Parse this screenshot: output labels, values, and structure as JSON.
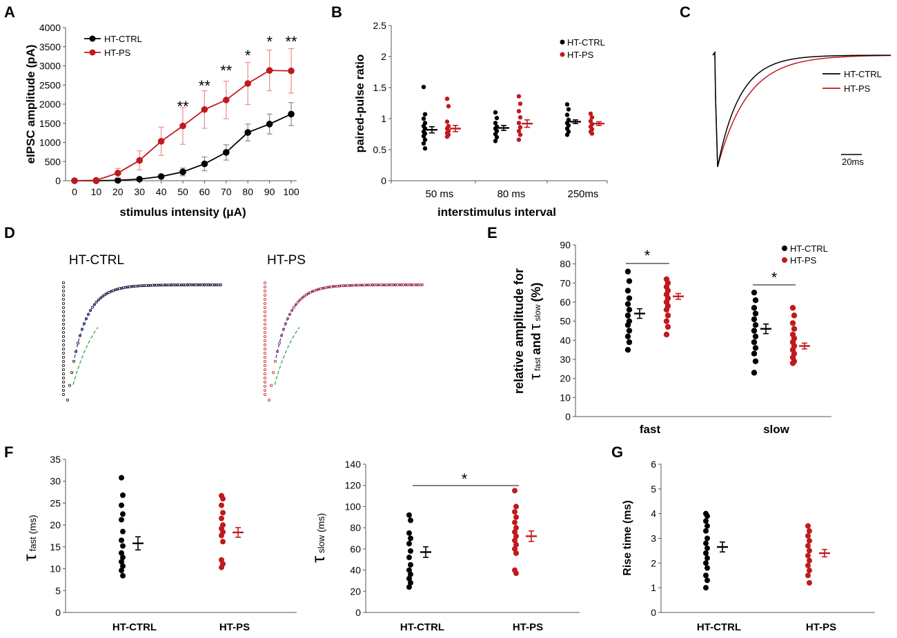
{
  "colors": {
    "ctrl": "#000000",
    "ps": "#c0191e",
    "ps_error": "#f08a8a",
    "axis": "#555555",
    "fit_blue": "#2b3cc4",
    "fit_green": "#2aa84a"
  },
  "chart_data": [
    {
      "panel": "A",
      "type": "line",
      "xlabel": "stimulus intensity (μA)",
      "ylabel": "eIPSC amplitude (pA)",
      "x": [
        0,
        10,
        20,
        30,
        40,
        50,
        60,
        70,
        80,
        90,
        100
      ],
      "ylim": [
        0,
        4000
      ],
      "yticks": [
        "0",
        "500",
        "1000",
        "1500",
        "2000",
        "2500",
        "3000",
        "3500",
        "4000"
      ],
      "xticks": [
        "0",
        "10",
        "20",
        "30",
        "40",
        "50",
        "60",
        "70",
        "80",
        "90",
        "100"
      ],
      "series": [
        {
          "name": "HT-CTRL",
          "values": [
            0,
            0,
            10,
            40,
            110,
            230,
            440,
            740,
            1260,
            1480,
            1740
          ],
          "errors": [
            0,
            0,
            20,
            30,
            40,
            100,
            180,
            200,
            220,
            260,
            300
          ]
        },
        {
          "name": "HT-PS",
          "values": [
            0,
            10,
            200,
            530,
            1030,
            1430,
            1860,
            2110,
            2540,
            2880,
            2870
          ],
          "errors": [
            0,
            20,
            120,
            250,
            370,
            480,
            490,
            490,
            550,
            530,
            580
          ]
        }
      ],
      "significance": [
        {
          "x": 50,
          "label": "**"
        },
        {
          "x": 60,
          "label": "**"
        },
        {
          "x": 70,
          "label": "**"
        },
        {
          "x": 80,
          "label": "*"
        },
        {
          "x": 90,
          "label": "*"
        },
        {
          "x": 100,
          "label": "**"
        }
      ]
    },
    {
      "panel": "B",
      "type": "scatter",
      "xlabel": "interstimulus interval",
      "ylabel": "paired-pulse ratio",
      "categories": [
        "50 ms",
        "80 ms",
        "250ms"
      ],
      "ylim": [
        0,
        2.5
      ],
      "yticks": [
        "0",
        "0.5",
        "1",
        "1.5",
        "2",
        "2.5"
      ],
      "series": [
        {
          "name": "HT-CTRL",
          "points": [
            [
              1.51,
              1.07,
              1.0,
              0.93,
              0.88,
              0.84,
              0.79,
              0.76,
              0.72,
              0.66,
              0.6,
              0.52
            ],
            [
              1.1,
              1.01,
              0.93,
              0.87,
              0.84,
              0.8,
              0.75,
              0.7,
              0.64
            ],
            [
              1.23,
              1.15,
              1.06,
              0.98,
              0.93,
              0.89,
              0.84,
              0.79,
              0.74
            ]
          ],
          "mean": [
            0.82,
            0.85,
            0.95
          ],
          "sem": [
            0.05,
            0.04,
            0.03
          ]
        },
        {
          "name": "HT-PS",
          "points": [
            [
              1.32,
              1.2,
              0.95,
              0.88,
              0.84,
              0.8,
              0.77,
              0.74,
              0.71
            ],
            [
              1.36,
              1.24,
              1.12,
              1.02,
              0.93,
              0.86,
              0.8,
              0.74,
              0.66
            ],
            [
              1.08,
              1.02,
              0.96,
              0.91,
              0.87,
              0.83,
              0.79,
              0.76
            ]
          ],
          "mean": [
            0.84,
            0.92,
            0.92
          ],
          "sem": [
            0.05,
            0.06,
            0.03
          ]
        }
      ]
    },
    {
      "panel": "C",
      "type": "line",
      "series_names": [
        "HT-CTRL",
        "HT-PS"
      ],
      "tau_ctrl_ms": 18,
      "tau_ps_ms": 24,
      "scale_label": "20ms"
    },
    {
      "panel": "D",
      "type": "line",
      "titles": [
        "HT-CTRL",
        "HT-PS"
      ]
    },
    {
      "panel": "E",
      "type": "scatter",
      "ylabel_line1": "relative amplitude for",
      "ylabel_tau": "τ",
      "ylabel_fast": "fast",
      "ylabel_and": "and",
      "ylabel_slow": "slow",
      "ylabel_pct": "(%)",
      "categories": [
        "fast",
        "slow"
      ],
      "ylim": [
        0,
        90
      ],
      "yticks": [
        "0",
        "10",
        "20",
        "30",
        "40",
        "50",
        "60",
        "70",
        "80",
        "90"
      ],
      "series": [
        {
          "name": "HT-CTRL",
          "points": [
            [
              76,
              71,
              66,
              62,
              59,
              56,
              53,
              50,
              48,
              45,
              42,
              39,
              35
            ],
            [
              65,
              61,
              57,
              54,
              51,
              48,
              45,
              42,
              39,
              36,
              33,
              29,
              23
            ]
          ],
          "mean": [
            54,
            46
          ],
          "sem": [
            2.5,
            2.5
          ]
        },
        {
          "name": "HT-PS",
          "points": [
            [
              72,
              70,
              68,
              66,
              64,
              62,
              60,
              58,
              56,
              53,
              50,
              47,
              43
            ],
            [
              57,
              53,
              49,
              46,
              43,
              41,
              39,
              37,
              35,
              33,
              31,
              29,
              28
            ]
          ],
          "mean": [
            63,
            37
          ],
          "sem": [
            1.5,
            1.5
          ]
        }
      ],
      "significance": [
        {
          "label": "*",
          "from": 0,
          "to": 0,
          "y": 78
        },
        {
          "label": "*",
          "from": 1,
          "to": 1,
          "y": 68
        }
      ]
    },
    {
      "panel": "F1",
      "type": "scatter",
      "ylabel_tau": "τ",
      "ylabel_sub": "fast",
      "ylabel_unit": "(ms)",
      "categories": [
        "HT-CTRL",
        "HT-PS"
      ],
      "ylim": [
        0,
        35
      ],
      "yticks": [
        "0",
        "5",
        "10",
        "15",
        "20",
        "25",
        "30",
        "35"
      ],
      "series": [
        {
          "name": "HT-CTRL",
          "points": [
            30.8,
            26.8,
            24.5,
            22.5,
            21.2,
            18.5,
            16.5,
            15.2,
            13.6,
            12.6,
            11.6,
            10.6,
            9.6,
            8.4
          ],
          "mean": 15.8,
          "sem": 1.5
        },
        {
          "name": "HT-PS",
          "points": [
            26.7,
            26.0,
            24.5,
            22.8,
            21.5,
            20.0,
            19.2,
            18.4,
            17.6,
            16.2,
            12.0,
            11.1,
            10.3
          ],
          "mean": 18.3,
          "sem": 1.1
        }
      ]
    },
    {
      "panel": "F2",
      "type": "scatter",
      "ylabel_tau": "τ",
      "ylabel_sub": "slow",
      "ylabel_unit": "(ms)",
      "categories": [
        "HT-CTRL",
        "HT-PS"
      ],
      "ylim": [
        0,
        140
      ],
      "yticks": [
        "0",
        "20",
        "40",
        "60",
        "80",
        "100",
        "120",
        "140"
      ],
      "series": [
        {
          "name": "HT-CTRL",
          "points": [
            92,
            87,
            75,
            70,
            65,
            58,
            52,
            45,
            40,
            36,
            32,
            28,
            24
          ],
          "mean": 57,
          "sem": 5
        },
        {
          "name": "HT-PS",
          "points": [
            115,
            100,
            95,
            90,
            85,
            80,
            76,
            72,
            68,
            64,
            60,
            56,
            40,
            37
          ],
          "mean": 72,
          "sem": 5
        }
      ],
      "significance": [
        {
          "label": "*",
          "from": 0,
          "to": 1,
          "y": 120
        }
      ]
    },
    {
      "panel": "G",
      "type": "scatter",
      "ylabel": "Rise time (ms)",
      "categories": [
        "HT-CTRL",
        "HT-PS"
      ],
      "ylim": [
        0,
        6
      ],
      "yticks": [
        "0",
        "1",
        "2",
        "3",
        "4",
        "5",
        "6"
      ],
      "series": [
        {
          "name": "HT-CTRL",
          "points": [
            4.0,
            3.9,
            3.7,
            3.5,
            3.3,
            3.0,
            2.8,
            2.6,
            2.4,
            2.2,
            2.0,
            1.8,
            1.5,
            1.3,
            1.0
          ],
          "mean": 2.65,
          "sem": 0.2
        },
        {
          "name": "HT-PS",
          "points": [
            3.5,
            3.3,
            3.1,
            2.9,
            2.7,
            2.5,
            2.3,
            2.1,
            1.9,
            1.7,
            1.5,
            1.2
          ],
          "mean": 2.4,
          "sem": 0.15
        }
      ]
    }
  ],
  "panel_letters": {
    "A": "A",
    "B": "B",
    "C": "C",
    "D": "D",
    "E": "E",
    "F": "F",
    "G": "G"
  }
}
